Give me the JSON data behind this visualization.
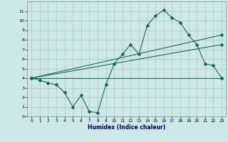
{
  "xlabel": "Humidex (Indice chaleur)",
  "bg_color": "#cce8e8",
  "grid_color": "#b8c8c8",
  "line_color": "#1a6b5a",
  "xlim": [
    -0.5,
    23.5
  ],
  "ylim": [
    0,
    12
  ],
  "yticks": [
    0,
    1,
    2,
    3,
    4,
    5,
    6,
    7,
    8,
    9,
    10,
    11
  ],
  "xticks": [
    0,
    1,
    2,
    3,
    4,
    5,
    6,
    7,
    8,
    9,
    10,
    11,
    12,
    13,
    14,
    15,
    16,
    17,
    18,
    19,
    20,
    21,
    22,
    23
  ],
  "line1_x": [
    0,
    1,
    2,
    3,
    4,
    5,
    6,
    7,
    8,
    9,
    10,
    11,
    12,
    13,
    14,
    15,
    16,
    17,
    18,
    19,
    20,
    21,
    22,
    23
  ],
  "line1_y": [
    4.0,
    3.8,
    3.5,
    3.3,
    2.5,
    1.0,
    2.2,
    0.5,
    0.4,
    3.3,
    5.5,
    6.5,
    7.5,
    6.5,
    9.5,
    10.5,
    11.1,
    10.3,
    9.8,
    8.5,
    7.5,
    5.5,
    5.3,
    4.0
  ],
  "line2_x": [
    0,
    23
  ],
  "line2_y": [
    4.0,
    4.0
  ],
  "line3_x": [
    0,
    23
  ],
  "line3_y": [
    4.0,
    8.5
  ],
  "line4_x": [
    0,
    23
  ],
  "line4_y": [
    4.0,
    7.5
  ]
}
